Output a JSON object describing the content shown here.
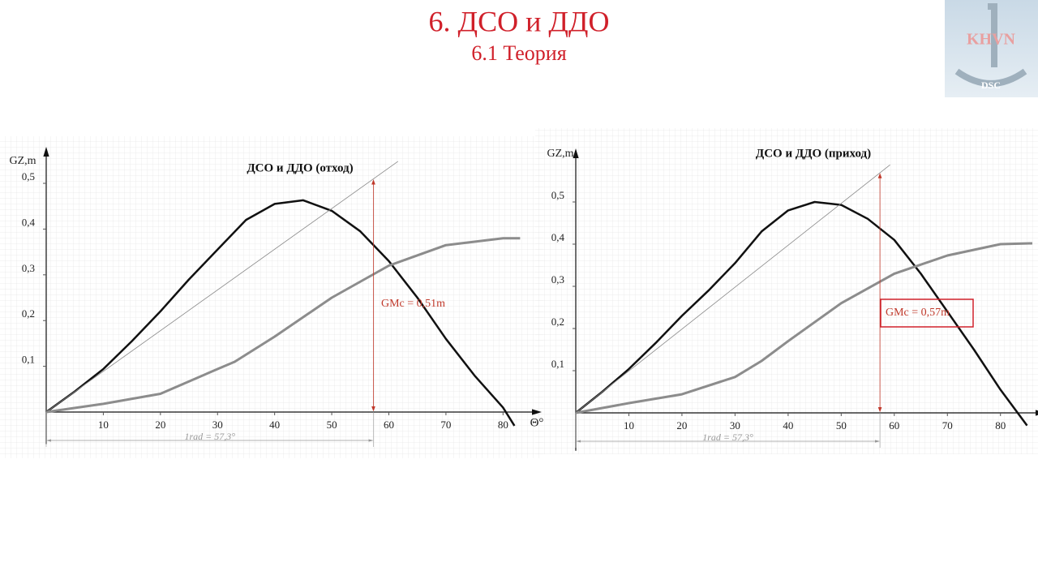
{
  "header": {
    "title": "6. ДСО и ДДО",
    "subtitle": "6.1 Теория"
  },
  "logo": {
    "text": "KHVN",
    "caption": "DSC"
  },
  "chart_data": [
    {
      "type": "line",
      "title": "ДСО и ДДО (отход)",
      "y_label": "GZ,m",
      "x_label": "Θ°",
      "xlim": [
        0,
        84.5
      ],
      "ylim": [
        -0.07,
        0.555
      ],
      "xticks": [
        10,
        20,
        30,
        40,
        50,
        60,
        70,
        80
      ],
      "yticks": [
        {
          "value": 0.1,
          "label": "0,1"
        },
        {
          "value": 0.2,
          "label": "0,2"
        },
        {
          "value": 0.3,
          "label": "0,3"
        },
        {
          "value": 0.4,
          "label": "0,4"
        },
        {
          "value": 0.5,
          "label": "0,5"
        }
      ],
      "series": [
        {
          "color": "#111111",
          "x": [
            0,
            5,
            10,
            15,
            20,
            25,
            30,
            35,
            40,
            45,
            50,
            55,
            60,
            65,
            70,
            75,
            80,
            82
          ],
          "values": [
            0,
            0.045,
            0.094,
            0.155,
            0.22,
            0.29,
            0.355,
            0.42,
            0.455,
            0.463,
            0.44,
            0.395,
            0.33,
            0.25,
            0.16,
            0.08,
            0.01,
            -0.03
          ]
        },
        {
          "color": "#8c8c8c",
          "x": [
            0,
            10,
            20,
            30,
            33,
            40,
            50,
            60,
            70,
            80,
            83
          ],
          "values": [
            0,
            0.018,
            0.04,
            0.094,
            0.11,
            0.165,
            0.25,
            0.32,
            0.365,
            0.38,
            0.38
          ]
        },
        {
          "color": "#888888",
          "x": [
            0,
            61.6
          ],
          "values": [
            0,
            0.548
          ]
        }
      ],
      "gmc": {
        "label": "GMc = 0,51m",
        "x": 57.3,
        "value": 0.51
      },
      "rad": {
        "label": "1rad = 57,3°",
        "value": 57.3
      }
    },
    {
      "type": "line",
      "title": "ДСО и ДДО (приход)",
      "y_label": "GZ,m",
      "xlim": [
        0,
        86
      ],
      "ylim": [
        -0.09,
        0.6
      ],
      "xticks": [
        10,
        20,
        30,
        40,
        50,
        60,
        70,
        80
      ],
      "yticks": [
        {
          "value": 0.1,
          "label": "0,1"
        },
        {
          "value": 0.2,
          "label": "0,2"
        },
        {
          "value": 0.3,
          "label": "0,3"
        },
        {
          "value": 0.4,
          "label": "0,4"
        },
        {
          "value": 0.5,
          "label": "0,5"
        }
      ],
      "series": [
        {
          "color": "#111111",
          "x": [
            0,
            5,
            10,
            15,
            20,
            25,
            30,
            35,
            40,
            45,
            50,
            55,
            60,
            65,
            70,
            75,
            80,
            85
          ],
          "values": [
            0,
            0.05,
            0.104,
            0.165,
            0.23,
            0.29,
            0.355,
            0.43,
            0.48,
            0.5,
            0.493,
            0.46,
            0.41,
            0.33,
            0.24,
            0.15,
            0.055,
            -0.03
          ]
        },
        {
          "color": "#8c8c8c",
          "x": [
            0,
            10,
            20,
            30,
            35,
            40,
            50,
            60,
            70,
            80,
            86
          ],
          "values": [
            0,
            0.023,
            0.044,
            0.085,
            0.123,
            0.17,
            0.26,
            0.33,
            0.373,
            0.4,
            0.402
          ]
        },
        {
          "color": "#888888",
          "x": [
            0,
            59.2
          ],
          "values": [
            0,
            0.588
          ]
        }
      ],
      "gmc": {
        "label": "GMc = 0,57m",
        "x": 57.3,
        "value": 0.57,
        "boxed": true
      },
      "rad": {
        "label": "1rad = 57,3°",
        "value": 57.3
      }
    }
  ]
}
